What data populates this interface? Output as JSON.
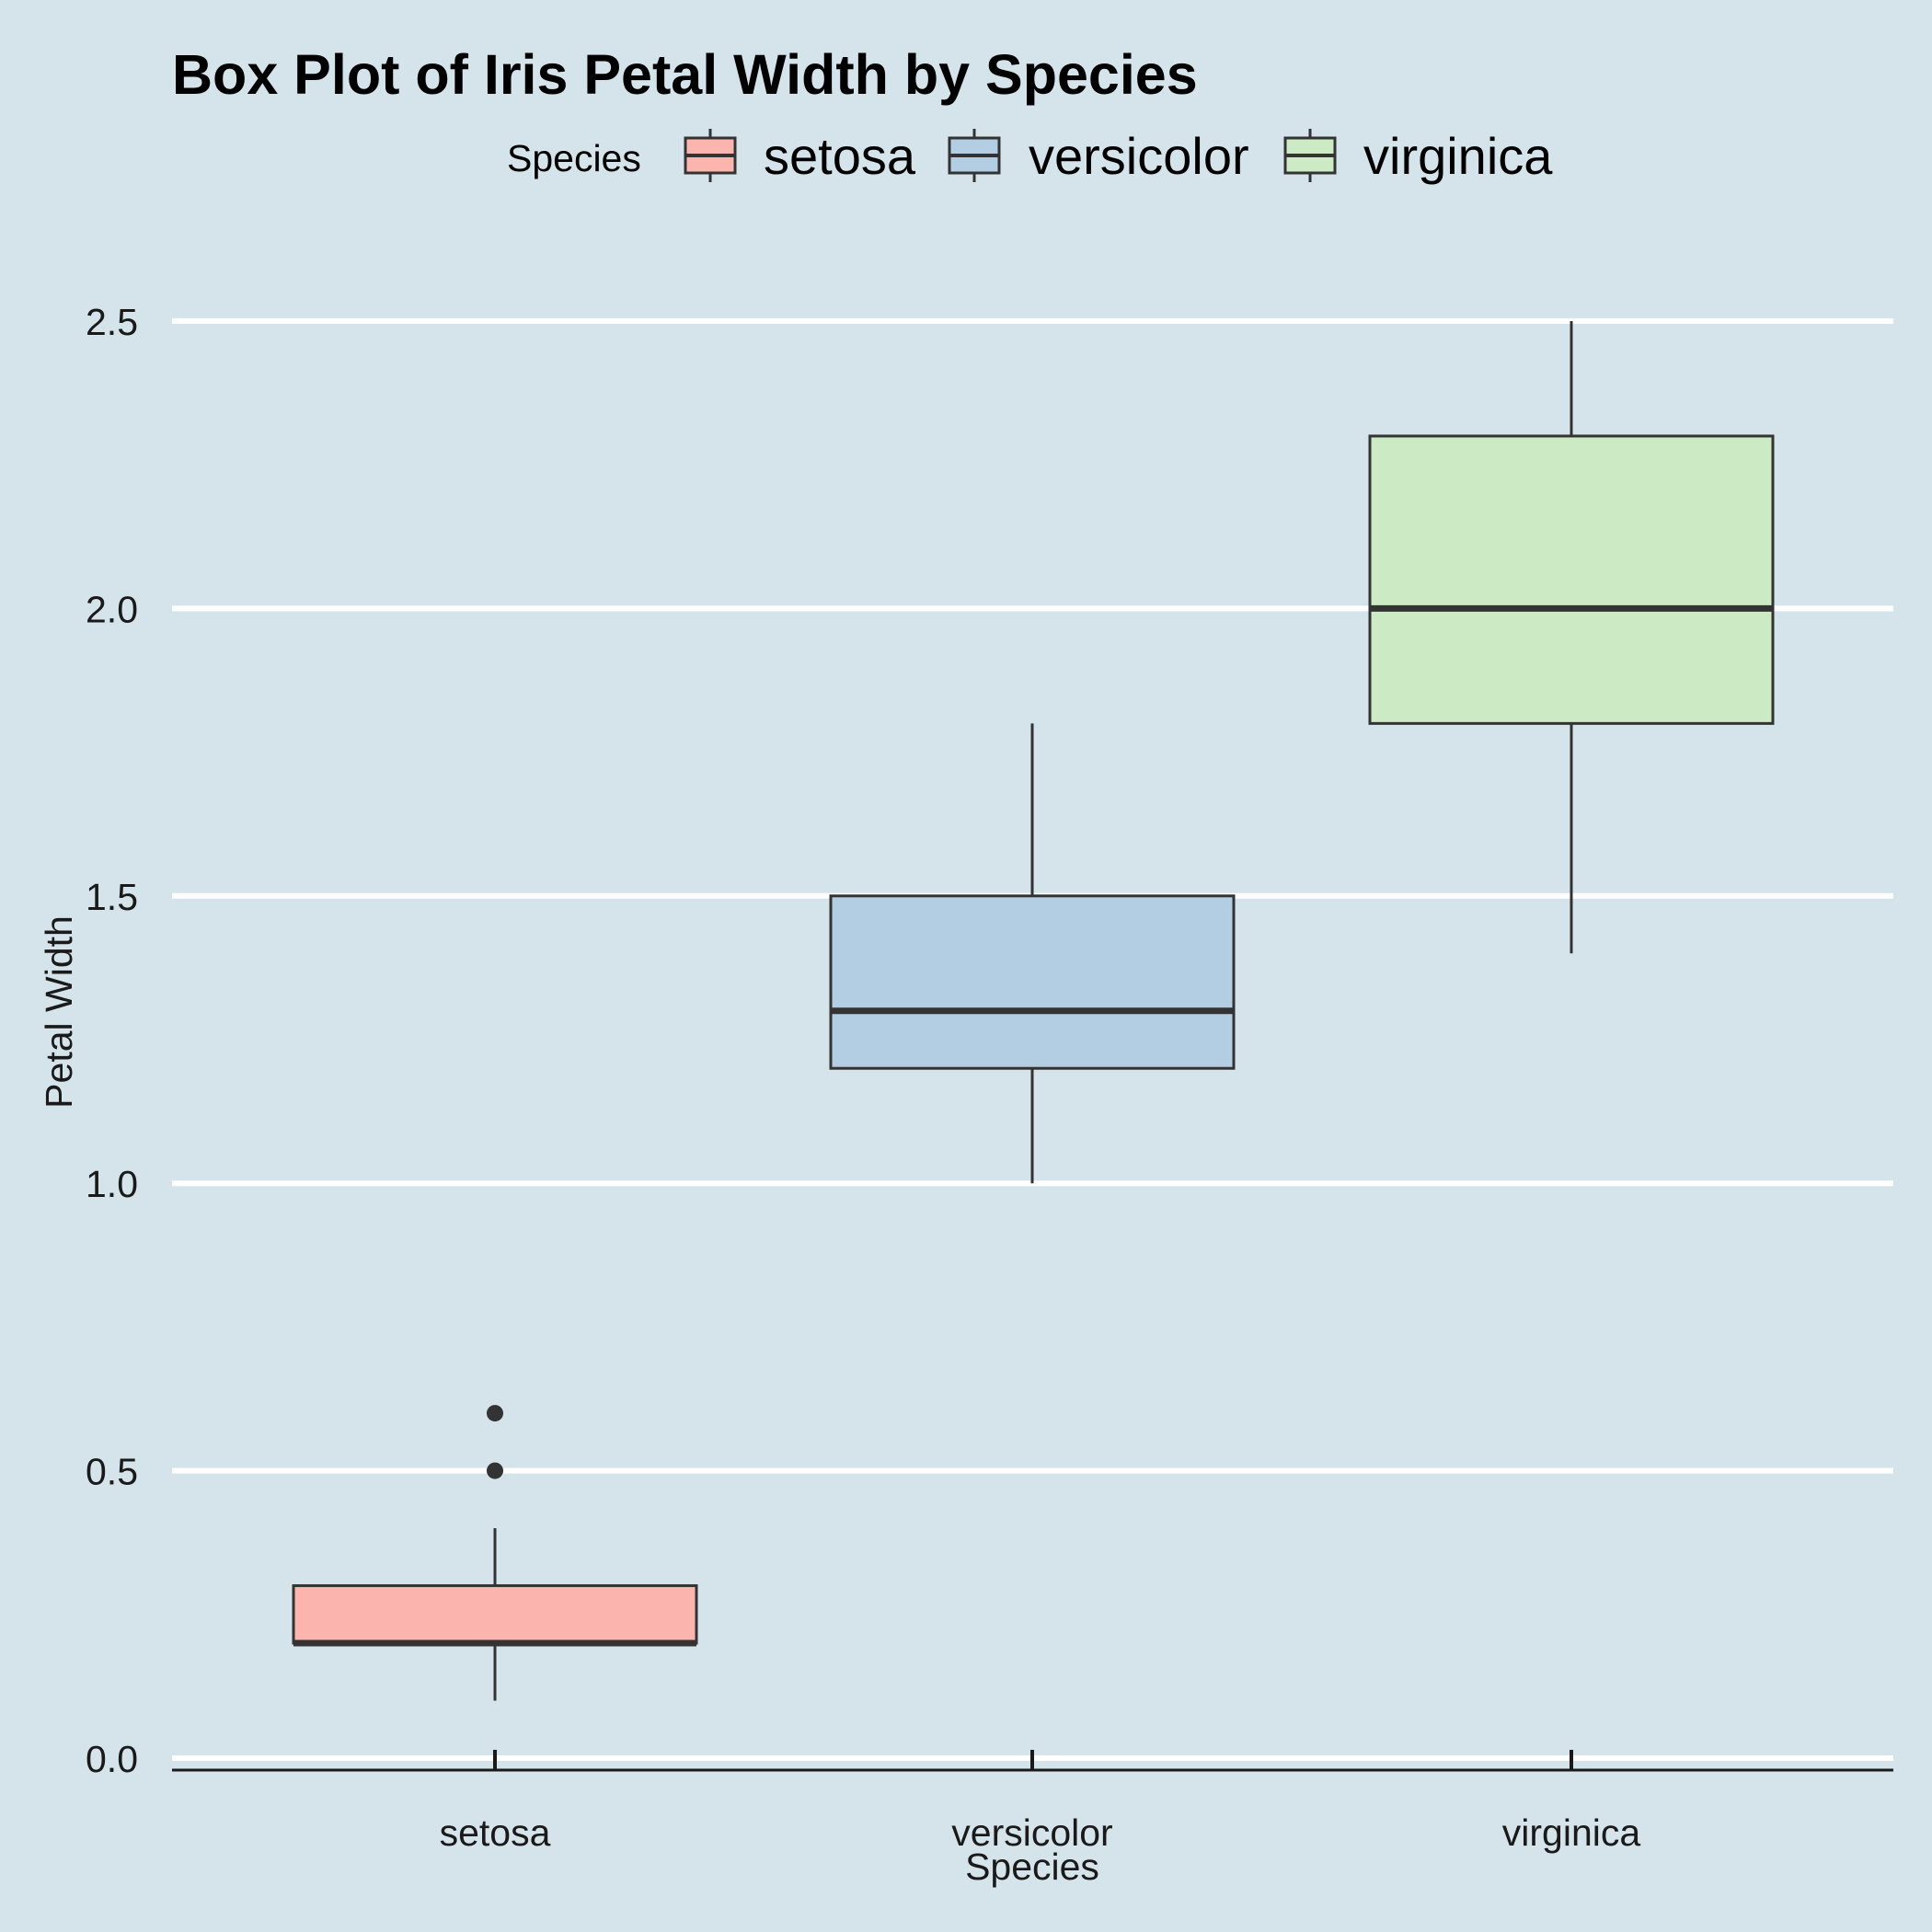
{
  "chart_data": {
    "type": "box",
    "title": "Box Plot of Iris Petal Width by Species",
    "xlabel": "Species",
    "ylabel": "Petal Width",
    "ylim": [
      0,
      2.5
    ],
    "yticks": [
      "0.0",
      "0.5",
      "1.0",
      "1.5",
      "2.0",
      "2.5"
    ],
    "grid": true,
    "legend": {
      "title": "Species",
      "position": "top"
    },
    "categories": [
      "setosa",
      "versicolor",
      "virginica"
    ],
    "series": [
      {
        "name": "setosa",
        "color": "#fbb4ae",
        "whisker_low": 0.1,
        "q1": 0.2,
        "median": 0.2,
        "q3": 0.3,
        "whisker_high": 0.4,
        "outliers": [
          0.5,
          0.6
        ]
      },
      {
        "name": "versicolor",
        "color": "#b3cde3",
        "whisker_low": 1.0,
        "q1": 1.2,
        "median": 1.3,
        "q3": 1.5,
        "whisker_high": 1.8,
        "outliers": []
      },
      {
        "name": "virginica",
        "color": "#ccebc5",
        "whisker_low": 1.4,
        "q1": 1.8,
        "median": 2.0,
        "q3": 2.3,
        "whisker_high": 2.5,
        "outliers": []
      }
    ]
  }
}
